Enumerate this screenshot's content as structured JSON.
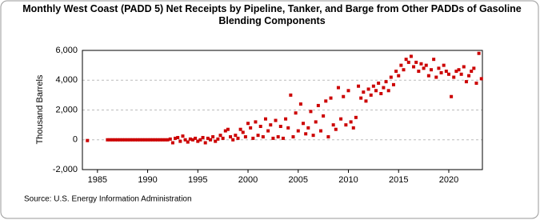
{
  "chart_data": {
    "type": "scatter",
    "title": "Monthly West Coast (PADD 5) Net Receipts by Pipeline, Tanker, and Barge from Other PADDs of Gasoline Blending Components",
    "y_label": "Thousand Barrels",
    "source": "Source: U.S. Energy Information Administration",
    "xlim": [
      1983.5,
      2023.35
    ],
    "xticks": [
      1985,
      1990,
      1995,
      2000,
      2005,
      2010,
      2015,
      2020
    ],
    "ylim": [
      -2000,
      6000
    ],
    "yticks": [
      {
        "value": -2000,
        "label": "-2,000"
      },
      0,
      {
        "value": 2000,
        "label": "2,000"
      },
      {
        "value": 4000,
        "label": "4,000"
      },
      {
        "value": 6000,
        "label": "6,000"
      }
    ],
    "grid": true,
    "series": [
      {
        "color": "#cc0000",
        "x": [
          1984,
          1986,
          1986.25,
          1986.5,
          1986.75,
          1987,
          1987.25,
          1987.5,
          1987.75,
          1988,
          1988.25,
          1988.5,
          1988.75,
          1989,
          1989.25,
          1989.5,
          1989.75,
          1990,
          1990.25,
          1990.5,
          1990.75,
          1991,
          1991.25,
          1991.5,
          1991.75,
          1992,
          1992.25,
          1992.5,
          1992.75,
          1993,
          1993.25,
          1993.5,
          1993.75,
          1994,
          1994.25,
          1994.5,
          1994.75,
          1995,
          1995.25,
          1995.5,
          1995.75,
          1996,
          1996.25,
          1996.5,
          1996.75,
          1997,
          1997.25,
          1997.5,
          1997.75,
          1998,
          1998.25,
          1998.5,
          1998.75,
          1999,
          1999.25,
          1999.5,
          1999.75,
          2000,
          2000.25,
          2000.5,
          2000.75,
          2001,
          2001.25,
          2001.5,
          2001.75,
          2002,
          2002.25,
          2002.5,
          2002.75,
          2003,
          2003.25,
          2003.5,
          2003.75,
          2004,
          2004.25,
          2004.5,
          2004.75,
          2005,
          2005.25,
          2005.5,
          2005.75,
          2006,
          2006.25,
          2006.5,
          2006.75,
          2007,
          2007.25,
          2007.5,
          2007.75,
          2008,
          2008.25,
          2008.5,
          2008.75,
          2009,
          2009.25,
          2009.5,
          2009.75,
          2010,
          2010.25,
          2010.5,
          2010.75,
          2011,
          2011.25,
          2011.5,
          2011.75,
          2012,
          2012.25,
          2012.5,
          2012.75,
          2013,
          2013.25,
          2013.5,
          2013.75,
          2014,
          2014.25,
          2014.5,
          2014.75,
          2015,
          2015.25,
          2015.5,
          2015.75,
          2016,
          2016.25,
          2016.5,
          2016.75,
          2017,
          2017.25,
          2017.5,
          2017.75,
          2018,
          2018.25,
          2018.5,
          2018.75,
          2019,
          2019.25,
          2019.5,
          2019.75,
          2020,
          2020.25,
          2020.5,
          2020.75,
          2021,
          2021.25,
          2021.5,
          2021.75,
          2022,
          2022.25,
          2022.5,
          2022.75,
          2023,
          2023.25
        ],
        "values": [
          -50,
          0,
          0,
          0,
          0,
          0,
          0,
          0,
          0,
          0,
          0,
          0,
          0,
          0,
          0,
          0,
          0,
          0,
          0,
          0,
          0,
          0,
          0,
          0,
          0,
          0,
          50,
          -200,
          100,
          150,
          -100,
          250,
          0,
          -150,
          50,
          0,
          100,
          -100,
          0,
          150,
          -200,
          100,
          0,
          200,
          -100,
          50,
          300,
          100,
          600,
          700,
          200,
          0,
          300,
          100,
          700,
          500,
          200,
          1100,
          800,
          100,
          1200,
          300,
          900,
          200,
          1400,
          600,
          1000,
          100,
          1300,
          200,
          900,
          100,
          1400,
          800,
          3000,
          200,
          1800,
          600,
          2400,
          1100,
          400,
          800,
          1900,
          300,
          1200,
          2300,
          600,
          1600,
          2600,
          200,
          2800,
          1000,
          700,
          3500,
          1400,
          2900,
          1000,
          3300,
          1200,
          800,
          1500,
          3600,
          2800,
          3200,
          2600,
          3400,
          3000,
          3600,
          3300,
          3800,
          3100,
          3500,
          3900,
          3300,
          4200,
          3700,
          4600,
          4300,
          5000,
          4700,
          5400,
          5200,
          5600,
          4900,
          5200,
          4600,
          5100,
          4800,
          5000,
          4300,
          4700,
          5400,
          4200,
          4800,
          4500,
          5000,
          4600,
          4400,
          2900,
          4200,
          4600,
          4700,
          4400,
          4900,
          3900,
          4300,
          4600,
          4800,
          3800,
          5800,
          4100
        ]
      }
    ]
  }
}
